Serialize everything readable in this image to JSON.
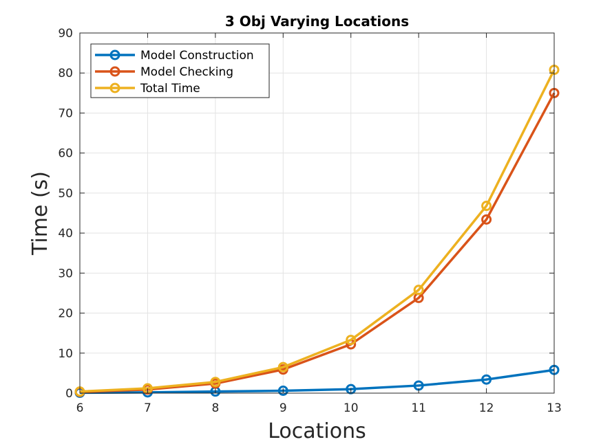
{
  "chart_data": {
    "type": "line",
    "title": "3 Obj Varying Locations",
    "xlabel": "Locations",
    "ylabel": "Time (s)",
    "xlim": [
      6,
      13
    ],
    "ylim": [
      0,
      90
    ],
    "x_ticks": [
      "6",
      "7",
      "8",
      "9",
      "10",
      "11",
      "12",
      "13"
    ],
    "y_ticks": [
      "0",
      "10",
      "20",
      "30",
      "40",
      "50",
      "60",
      "70",
      "80",
      "90"
    ],
    "grid": true,
    "legend_position": "top-left",
    "x": [
      6,
      7,
      8,
      9,
      10,
      11,
      12,
      13
    ],
    "series": [
      {
        "name": "Model Construction",
        "color": "#0072BD",
        "marker": "circle",
        "values": [
          0.1,
          0.2,
          0.4,
          0.6,
          1.0,
          1.9,
          3.4,
          5.8
        ]
      },
      {
        "name": "Model Checking",
        "color": "#D95319",
        "marker": "circle",
        "values": [
          0.3,
          0.9,
          2.4,
          5.9,
          12.2,
          23.8,
          43.4,
          75.0
        ]
      },
      {
        "name": "Total Time",
        "color": "#EDB120",
        "marker": "circle",
        "values": [
          0.4,
          1.2,
          2.8,
          6.5,
          13.3,
          25.8,
          46.8,
          80.8
        ]
      }
    ]
  }
}
